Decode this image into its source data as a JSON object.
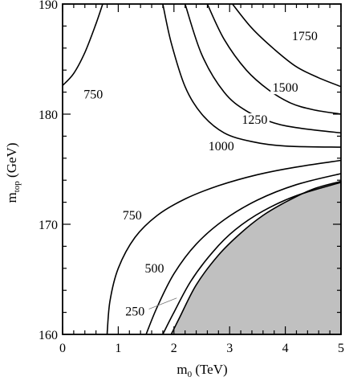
{
  "chart_data": {
    "type": "contour",
    "xlabel_main": "m",
    "xlabel_sub": "0",
    "xlabel_unit": " (TeV)",
    "ylabel_main": "m",
    "ylabel_sub": "top",
    "ylabel_unit": " (GeV)",
    "xlim": [
      0,
      5
    ],
    "ylim": [
      160,
      190
    ],
    "x_ticks": [
      0,
      1,
      2,
      3,
      4,
      5
    ],
    "x_tick_labels": [
      "0",
      "1",
      "2",
      "3",
      "4",
      "5"
    ],
    "y_ticks": [
      160,
      170,
      180,
      190
    ],
    "y_tick_labels": [
      "160",
      "170",
      "180",
      "190"
    ],
    "excluded_region_color": "#c0c0c0",
    "excluded_region": [
      [
        1.95,
        160
      ],
      [
        2.1,
        161.5
      ],
      [
        2.4,
        164.5
      ],
      [
        2.8,
        167.2
      ],
      [
        3.2,
        169.2
      ],
      [
        3.6,
        170.8
      ],
      [
        4.0,
        172.0
      ],
      [
        4.5,
        173.2
      ],
      [
        5.0,
        173.9
      ],
      [
        5.0,
        160
      ]
    ],
    "contours": [
      {
        "level": "1750",
        "label_text": "1750",
        "label_pos": [
          4.35,
          186.8
        ],
        "points": [
          [
            3.05,
            190
          ],
          [
            3.4,
            187.8
          ],
          [
            3.8,
            185.9
          ],
          [
            4.2,
            184.3
          ],
          [
            4.6,
            183.3
          ],
          [
            5.0,
            182.5
          ]
        ]
      },
      {
        "level": "1500",
        "label_text": "1500",
        "label_pos": [
          4.0,
          182.1
        ],
        "points": [
          [
            2.6,
            190
          ],
          [
            2.9,
            186.8
          ],
          [
            3.3,
            184.0
          ],
          [
            3.7,
            182.2
          ],
          [
            4.1,
            181.0
          ],
          [
            4.5,
            180.4
          ],
          [
            5.0,
            180.0
          ]
        ]
      },
      {
        "level": "1250",
        "label_text": "1250",
        "label_pos": [
          3.45,
          179.2
        ],
        "points": [
          [
            2.2,
            190
          ],
          [
            2.5,
            185.4
          ],
          [
            2.9,
            182.0
          ],
          [
            3.3,
            180.3
          ],
          [
            3.8,
            179.2
          ],
          [
            4.3,
            178.7
          ],
          [
            5.0,
            178.3
          ]
        ]
      },
      {
        "level": "1000",
        "label_text": "1000",
        "label_pos": [
          2.85,
          176.8
        ],
        "points": [
          [
            1.8,
            190
          ],
          [
            1.95,
            186.5
          ],
          [
            2.2,
            182.5
          ],
          [
            2.5,
            180.0
          ],
          [
            2.9,
            178.3
          ],
          [
            3.4,
            177.5
          ],
          [
            4.0,
            177.1
          ],
          [
            5.0,
            177.0
          ]
        ]
      },
      {
        "level": "750",
        "label_text": "750",
        "label_pos": [
          0.55,
          181.5
        ],
        "points": [
          [
            0.0,
            182.6
          ],
          [
            0.2,
            183.7
          ],
          [
            0.4,
            185.6
          ],
          [
            0.6,
            188.2
          ],
          [
            0.72,
            190
          ]
        ]
      },
      {
        "level": "750",
        "label_text": "750",
        "label_pos": [
          1.25,
          170.5
        ],
        "points": [
          [
            0.8,
            160
          ],
          [
            0.85,
            163.0
          ],
          [
            1.0,
            166.0
          ],
          [
            1.3,
            168.8
          ],
          [
            1.7,
            170.8
          ],
          [
            2.2,
            172.3
          ],
          [
            2.8,
            173.5
          ],
          [
            3.5,
            174.5
          ],
          [
            4.2,
            175.2
          ],
          [
            5.0,
            175.8
          ]
        ]
      },
      {
        "level": "500",
        "label_text": "500",
        "label_pos": [
          1.65,
          165.7
        ],
        "points": [
          [
            1.5,
            160
          ],
          [
            1.7,
            162.5
          ],
          [
            2.0,
            165.5
          ],
          [
            2.4,
            168.2
          ],
          [
            2.9,
            170.4
          ],
          [
            3.5,
            172.2
          ],
          [
            4.2,
            173.6
          ],
          [
            5.0,
            174.6
          ]
        ]
      },
      {
        "level": "250",
        "label_text": "250",
        "label_pos": [
          1.3,
          161.8
        ],
        "points": [
          [
            1.8,
            160
          ],
          [
            1.98,
            161.8
          ],
          [
            2.3,
            164.8
          ],
          [
            2.7,
            167.5
          ],
          [
            3.1,
            169.5
          ],
          [
            3.6,
            171.2
          ],
          [
            4.2,
            172.6
          ],
          [
            5.0,
            173.8
          ]
        ]
      }
    ],
    "leader_line": {
      "from": [
        1.55,
        162.3
      ],
      "to": [
        2.05,
        163.3
      ]
    }
  }
}
